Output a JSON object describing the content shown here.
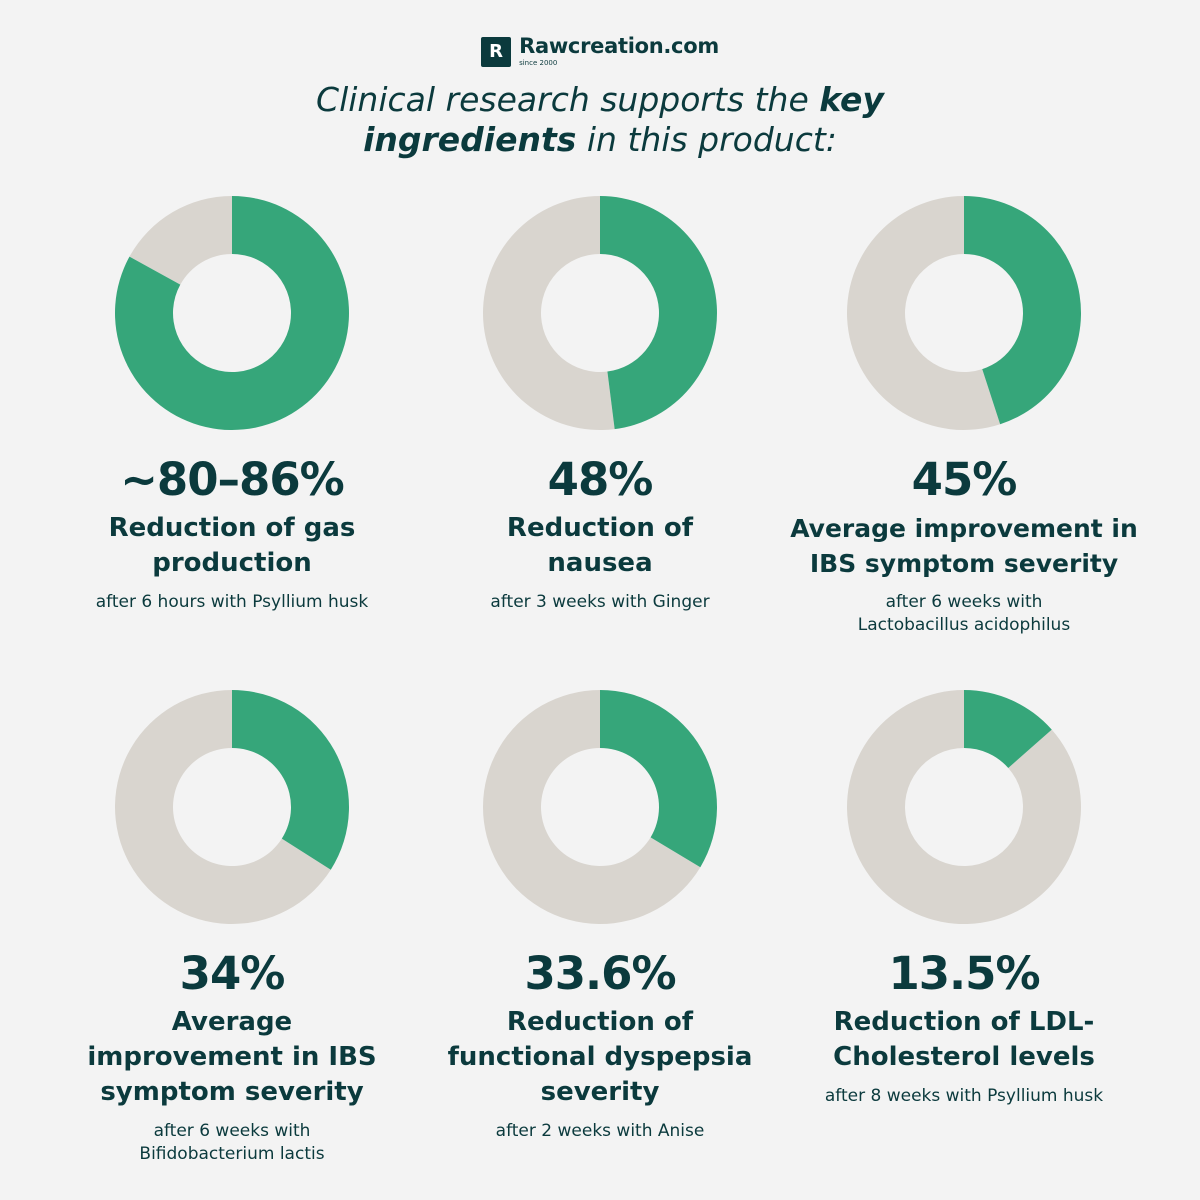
{
  "brand": {
    "mark": "R",
    "name": "Rawcreation.com",
    "tagline": "since 2000"
  },
  "headline": {
    "part1": "Clinical research supports the ",
    "bold1": "key",
    "bold2": "ingredients",
    "part2": " in this product:"
  },
  "colors": {
    "highlight": "#36a67a",
    "remainder": "#d9d5cf",
    "text": "#0b3a3d",
    "background": "#f3f3f3"
  },
  "chart_data": [
    {
      "type": "pie",
      "subtype": "donut",
      "value_label": "~80–86%",
      "value": 83,
      "title": "Reduction of gas production",
      "note": "after 6 hours with Psyllium husk"
    },
    {
      "type": "pie",
      "subtype": "donut",
      "value_label": "48%",
      "value": 48,
      "title": "Reduction of nausea",
      "note": "after 3 weeks with Ginger"
    },
    {
      "type": "pie",
      "subtype": "donut",
      "value_label": "45%",
      "value": 45,
      "title": "Average improvement in IBS symptom severity",
      "note": "after 6 weeks with Lactobacillus acidophilus"
    },
    {
      "type": "pie",
      "subtype": "donut",
      "value_label": "34%",
      "value": 34,
      "title": "Average improvement in IBS symptom severity",
      "note": "after 6 weeks with Bifidobacterium lactis"
    },
    {
      "type": "pie",
      "subtype": "donut",
      "value_label": "33.6%",
      "value": 33.6,
      "title": "Reduction of functional dyspepsia severity",
      "note": "after 2 weeks with Anise"
    },
    {
      "type": "pie",
      "subtype": "donut",
      "value_label": "13.5%",
      "value": 13.5,
      "title": "Reduction of LDL-Cholesterol levels",
      "note": "after 8 weeks with Psyllium husk"
    }
  ]
}
